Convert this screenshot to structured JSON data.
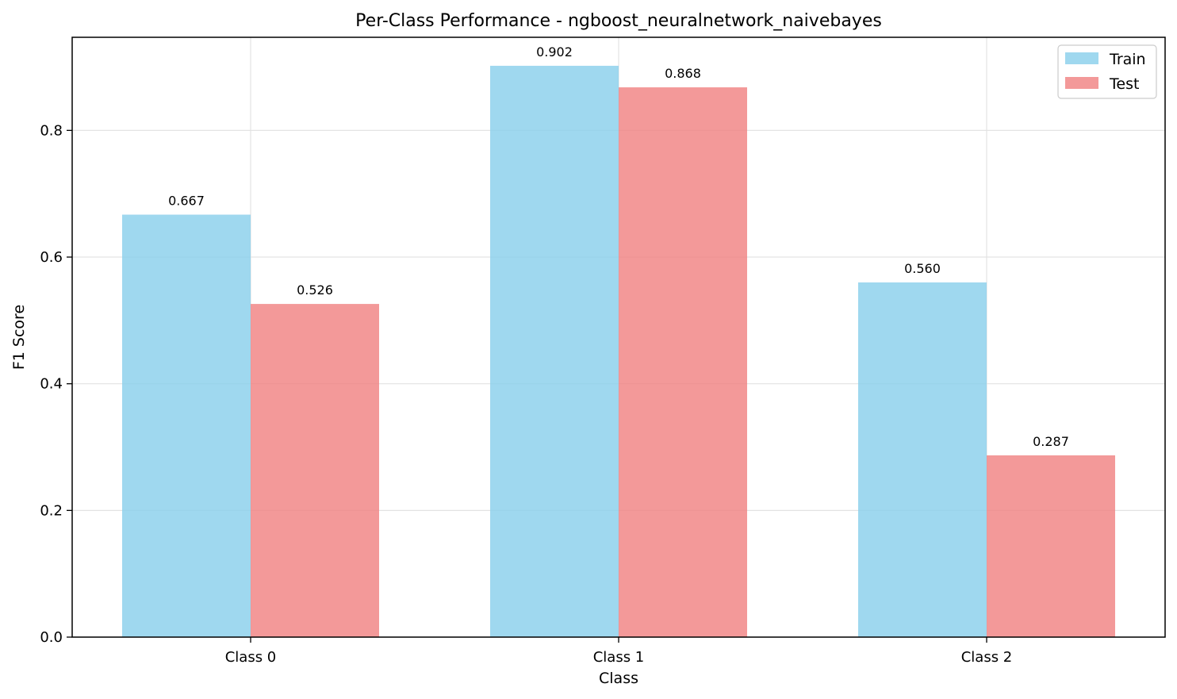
{
  "chart_data": {
    "type": "bar",
    "title": "Per-Class Performance - ngboost_neuralnetwork_naivebayes",
    "xlabel": "Class",
    "ylabel": "F1 Score",
    "categories": [
      "Class 0",
      "Class 1",
      "Class 2"
    ],
    "series": [
      {
        "name": "Train",
        "values": [
          0.667,
          0.902,
          0.56
        ],
        "labels": [
          "0.667",
          "0.902",
          "0.560"
        ],
        "color": "#87ceeb"
      },
      {
        "name": "Test",
        "values": [
          0.526,
          0.868,
          0.287
        ],
        "labels": [
          "0.526",
          "0.868",
          "0.287"
        ],
        "color": "#f08080"
      }
    ],
    "ylim": [
      0,
      0.947
    ],
    "yticks": [
      0.0,
      0.2,
      0.4,
      0.6,
      0.8
    ],
    "ytick_labels": [
      "0.0",
      "0.2",
      "0.4",
      "0.6",
      "0.8"
    ],
    "grid": true,
    "legend_position": "top-right"
  }
}
